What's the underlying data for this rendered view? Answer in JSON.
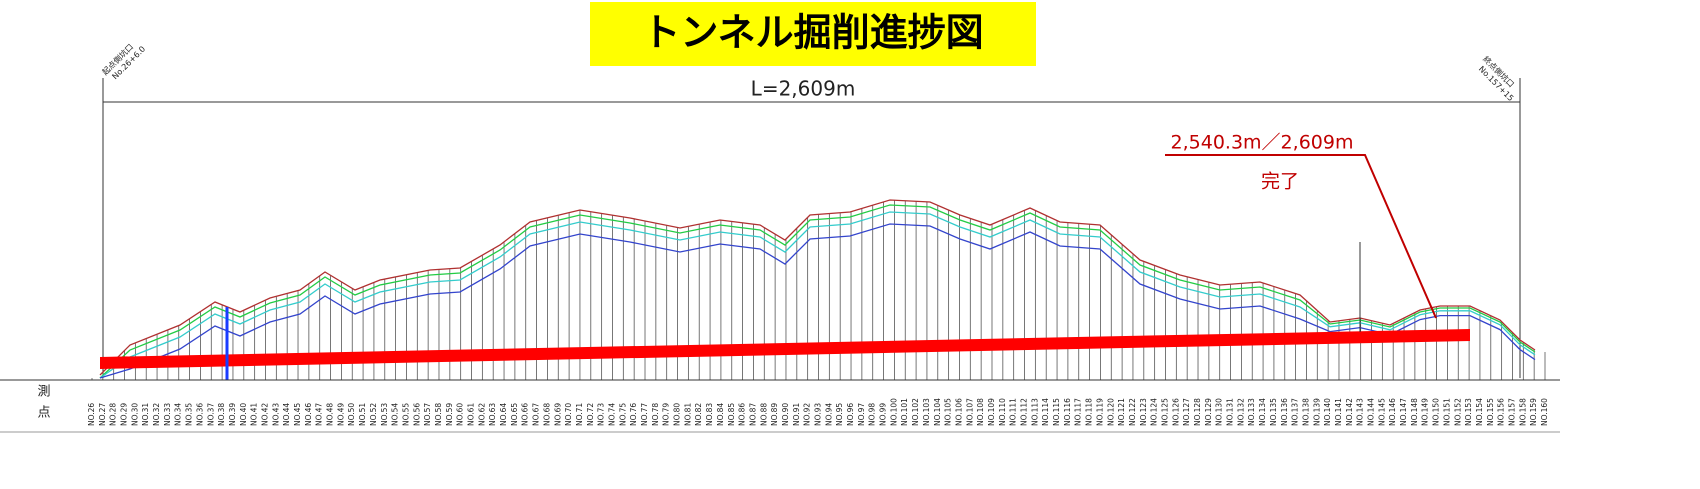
{
  "title": "トンネル掘削進捗図",
  "length_label": "L=2,609m",
  "progress": {
    "ratio": "2,540.3m／2,609m",
    "status": "完了"
  },
  "portals": {
    "start": {
      "name": "起点側坑口",
      "station": "No.26+6.0"
    },
    "end": {
      "name": "終点側坑口",
      "station": "No.157+15"
    }
  },
  "table": {
    "header": "測点",
    "stations": [
      "NO.26",
      "NO.27",
      "NO.28",
      "NO.29",
      "NO.30",
      "NO.31",
      "NO.32",
      "NO.33",
      "NO.34",
      "NO.35",
      "NO.36",
      "NO.37",
      "NO.38",
      "NO.39",
      "NO.40",
      "NO.41",
      "NO.42",
      "NO.43",
      "NO.44",
      "NO.45",
      "NO.46",
      "NO.47",
      "NO.48",
      "NO.49",
      "NO.50",
      "NO.51",
      "NO.52",
      "NO.53",
      "NO.54",
      "NO.55",
      "NO.56",
      "NO.57",
      "NO.58",
      "NO.59",
      "NO.60",
      "NO.61",
      "NO.62",
      "NO.63",
      "NO.64",
      "NO.65",
      "NO.66",
      "NO.67",
      "NO.68",
      "NO.69",
      "NO.70",
      "NO.71",
      "NO.72",
      "NO.73",
      "NO.74",
      "NO.75",
      "NO.76",
      "NO.77",
      "NO.78",
      "NO.79",
      "NO.80",
      "NO.81",
      "NO.82",
      "NO.83",
      "NO.84",
      "NO.85",
      "NO.86",
      "NO.87",
      "NO.88",
      "NO.89",
      "NO.90",
      "NO.91",
      "NO.92",
      "NO.93",
      "NO.94",
      "NO.95",
      "NO.96",
      "NO.97",
      "NO.98",
      "NO.99",
      "NO.100",
      "NO.101",
      "NO.102",
      "NO.103",
      "NO.104",
      "NO.105",
      "NO.106",
      "NO.107",
      "NO.108",
      "NO.109",
      "NO.110",
      "NO.111",
      "NO.112",
      "NO.113",
      "NO.114",
      "NO.115",
      "NO.116",
      "NO.117",
      "NO.118",
      "NO.119",
      "NO.120",
      "NO.121",
      "NO.122",
      "NO.123",
      "NO.124",
      "NO.125",
      "NO.126",
      "NO.127",
      "NO.128",
      "NO.129",
      "NO.130",
      "NO.131",
      "NO.132",
      "NO.133",
      "NO.134",
      "NO.135",
      "NO.136",
      "NO.137",
      "NO.138",
      "NO.139",
      "NO.140",
      "NO.141",
      "NO.142",
      "NO.143",
      "NO.144",
      "NO.145",
      "NO.146",
      "NO.147",
      "NO.148",
      "NO.149",
      "NO.150",
      "NO.151",
      "NO.152",
      "NO.153",
      "NO.154",
      "NO.155",
      "NO.156",
      "NO.157",
      "NO.158",
      "NO.159",
      "NO.160"
    ]
  }
}
